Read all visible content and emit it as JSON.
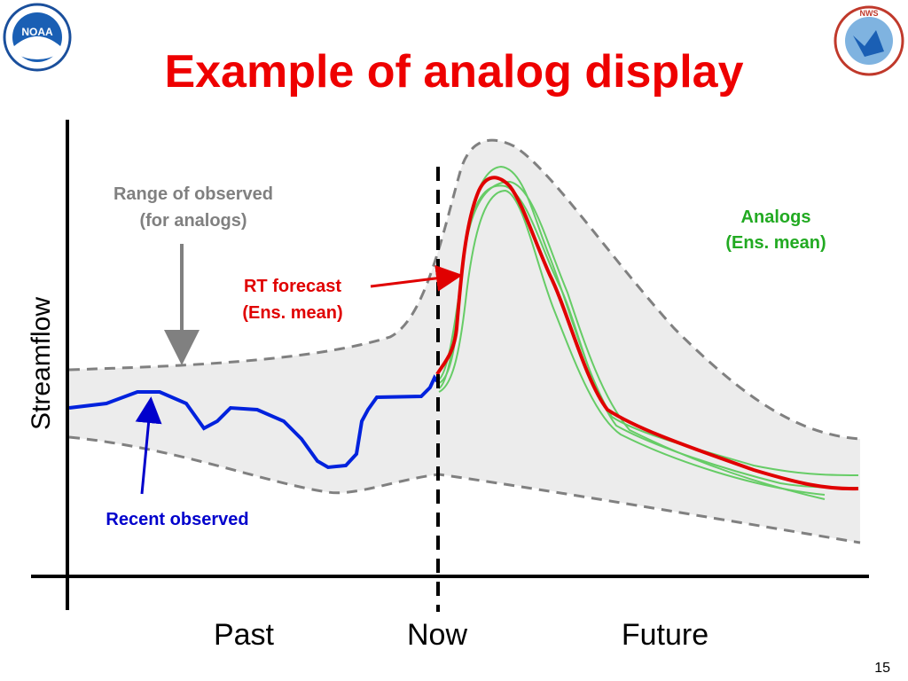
{
  "header": {
    "title": "Example of analog display",
    "logos": [
      "NOAA",
      "NWS"
    ]
  },
  "diagram": {
    "y_axis_label": "Streamflow",
    "x_labels": [
      "Past",
      "Now",
      "Future"
    ],
    "annotations": {
      "range": [
        "Range of observed",
        "(for analogs)"
      ],
      "analogs": [
        "Analogs",
        "(Ens. mean)"
      ],
      "rt_forecast": [
        "RT forecast",
        "(Ens. mean)"
      ],
      "recent": "Recent observed"
    }
  },
  "footer": {
    "page_number": "15"
  }
}
